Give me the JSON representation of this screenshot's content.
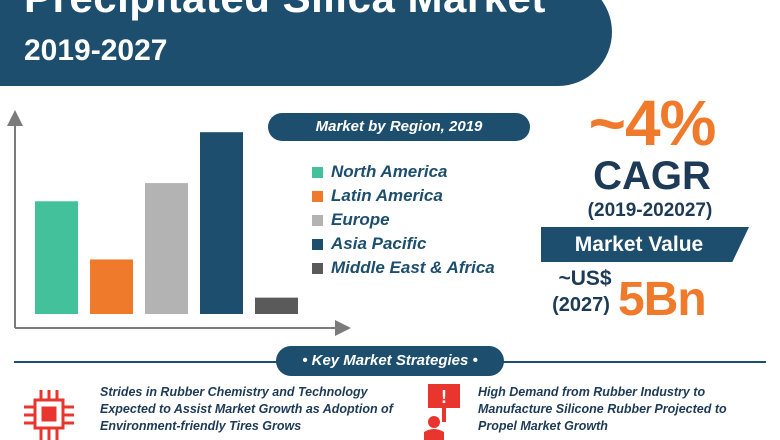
{
  "header": {
    "title": "Precipitated Silica Market",
    "subtitle": "2019-2027"
  },
  "chart_data": {
    "type": "bar",
    "title": "Market by Region, 2019",
    "categories": [
      "North America",
      "Latin America",
      "Europe",
      "Asia Pacific",
      "Middle East & Africa"
    ],
    "values": [
      62,
      30,
      72,
      100,
      9
    ],
    "colors": [
      "#42c19a",
      "#f07a2b",
      "#b3b3b3",
      "#1e4e6e",
      "#5a5a5a"
    ],
    "xlabel": "",
    "ylabel": "",
    "ylim": [
      0,
      110
    ],
    "legend_position": "right",
    "grid": false
  },
  "stats": {
    "cagr_value": "~4%",
    "cagr_label": "CAGR",
    "cagr_period": "(2019-202027)",
    "market_value_label": "Market Value",
    "currency": "~US$",
    "year": "(2027)",
    "value": "5Bn"
  },
  "strategies": {
    "heading": "• Key Market Strategies •",
    "items": [
      {
        "text": "Strides in Rubber Chemistry and Technology Expected to Assist Market Growth as Adoption of Environment-friendly Tires Grows",
        "icon": "chip-icon"
      },
      {
        "text": "High Demand from Rubber Industry to Manufacture Silicone Rubber Projected to Propel Market Growth",
        "icon": "protest-sign-icon"
      }
    ]
  },
  "colors": {
    "navy": "#1e4e6e",
    "orange": "#f07a2b",
    "red_icon": "#e8362f"
  }
}
